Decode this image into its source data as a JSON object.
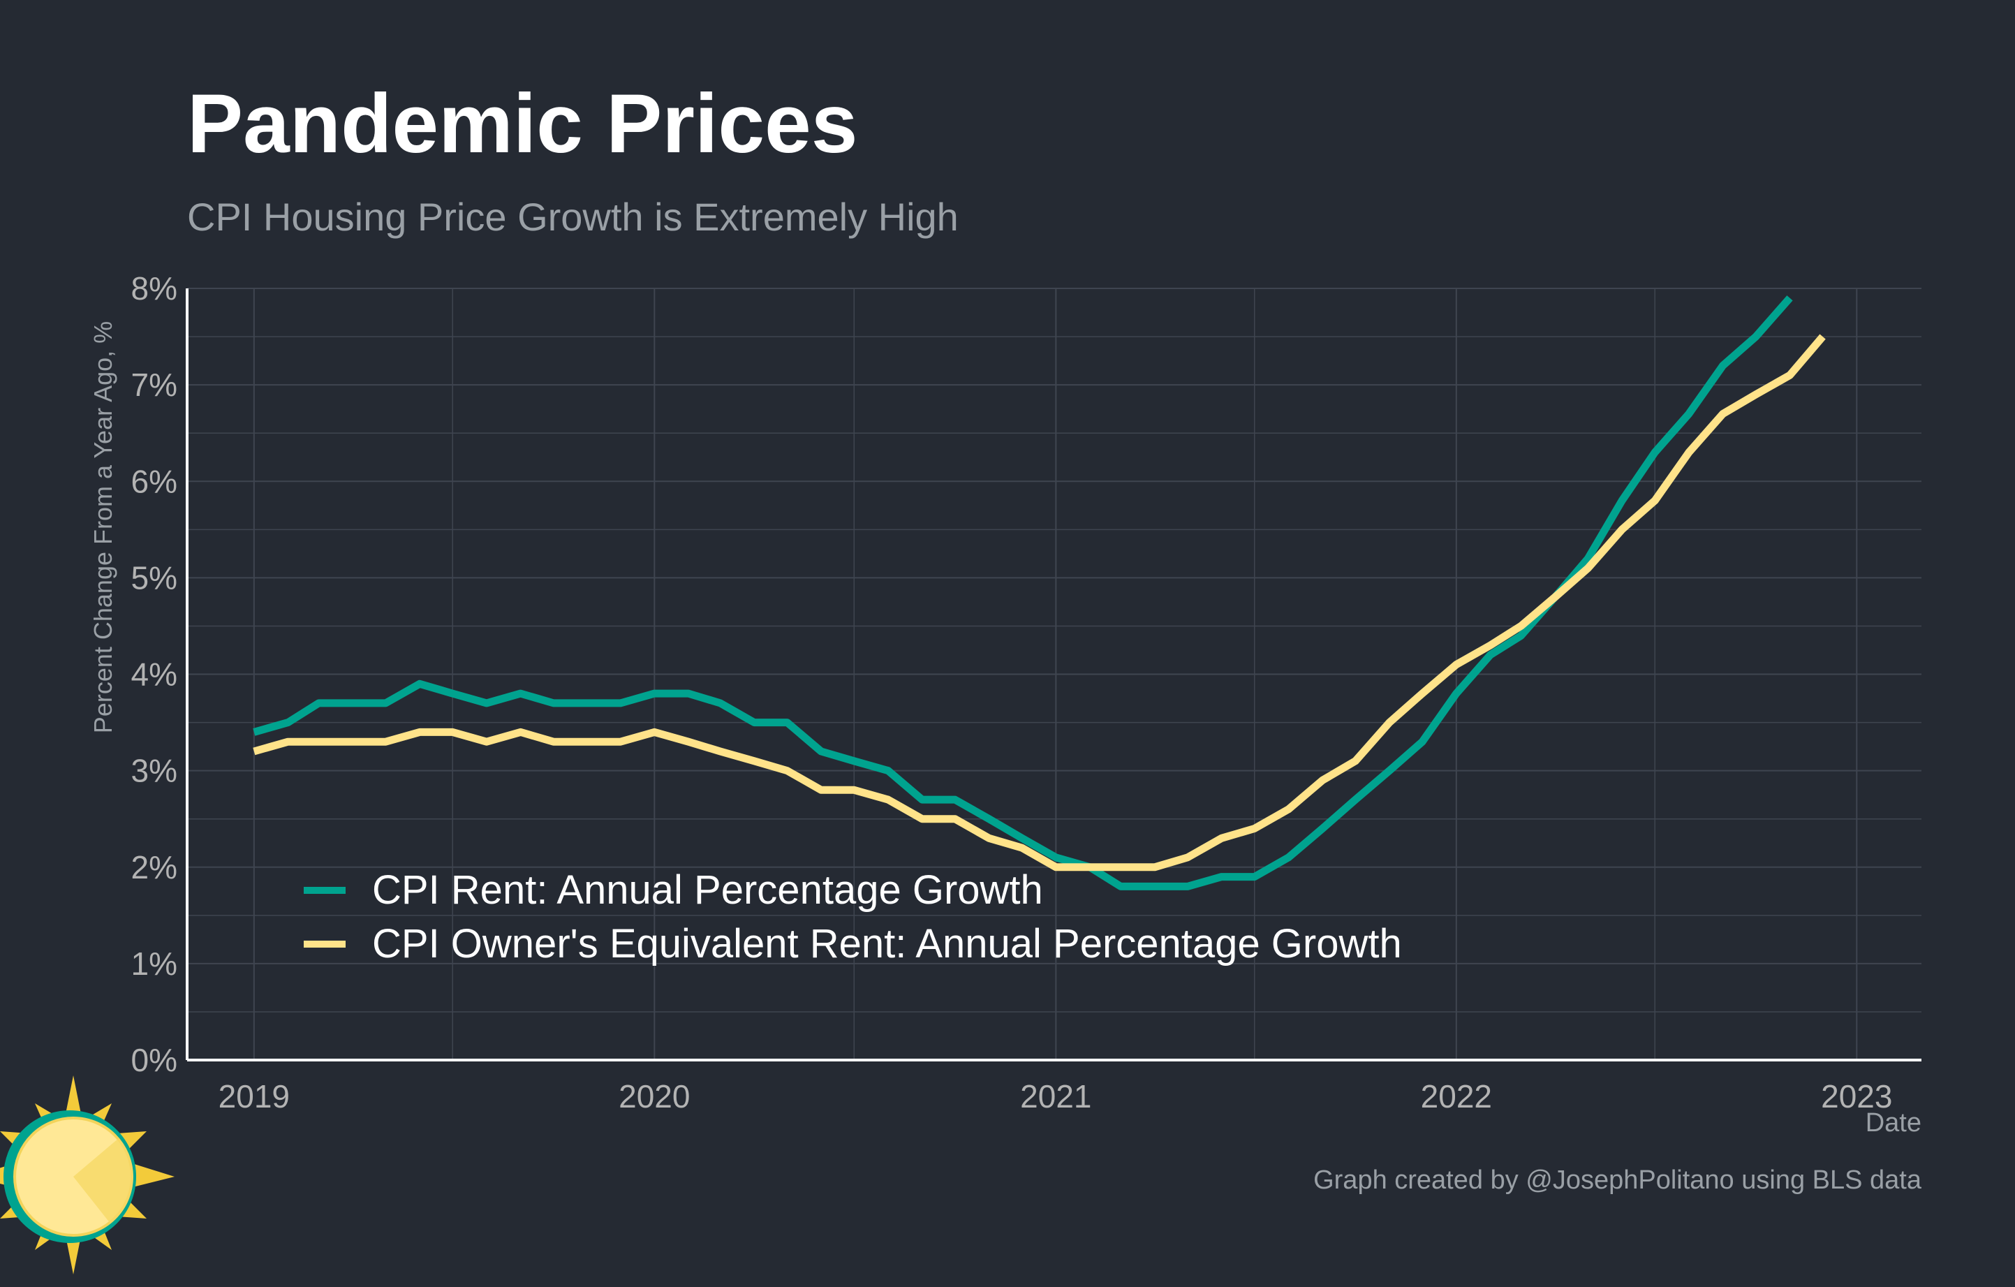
{
  "title": "Pandemic Prices",
  "subtitle": "CPI Housing Price Growth is Extremely High",
  "caption": "Graph created by @JosephPolitano using BLS data",
  "colors": {
    "background": "#252a33",
    "grid": "#3f4550",
    "axis": "#ffffff",
    "text_muted": "#9aa0a6",
    "tick": "#b3b3b3"
  },
  "logo": {
    "icon": "sun-logo-icon"
  },
  "chart_data": {
    "type": "line",
    "xlabel": "Date",
    "ylabel": "Percent Change From a Year Ago, %",
    "xlim": [
      "2018-11-01",
      "2023-03-01"
    ],
    "ylim": [
      0,
      8
    ],
    "x_ticks": [
      "2019",
      "2020",
      "2021",
      "2022",
      "2023"
    ],
    "y_ticks": [
      "0%",
      "1%",
      "2%",
      "3%",
      "4%",
      "5%",
      "6%",
      "7%",
      "8%"
    ],
    "grid": true,
    "legend_position": "bottom-left",
    "series": [
      {
        "name": "CPI Rent: Annual Percentage Growth",
        "color": "#00a38f",
        "x": [
          "2019-01",
          "2019-02",
          "2019-03",
          "2019-04",
          "2019-05",
          "2019-06",
          "2019-07",
          "2019-08",
          "2019-09",
          "2019-10",
          "2019-11",
          "2019-12",
          "2020-01",
          "2020-02",
          "2020-03",
          "2020-04",
          "2020-05",
          "2020-06",
          "2020-07",
          "2020-08",
          "2020-09",
          "2020-10",
          "2020-11",
          "2020-12",
          "2021-01",
          "2021-02",
          "2021-03",
          "2021-04",
          "2021-05",
          "2021-06",
          "2021-07",
          "2021-08",
          "2021-09",
          "2021-10",
          "2021-11",
          "2021-12",
          "2022-01",
          "2022-02",
          "2022-03",
          "2022-04",
          "2022-05",
          "2022-06",
          "2022-07",
          "2022-08",
          "2022-09",
          "2022-10",
          "2022-11"
        ],
        "values": [
          3.4,
          3.5,
          3.7,
          3.7,
          3.7,
          3.9,
          3.8,
          3.7,
          3.8,
          3.7,
          3.7,
          3.7,
          3.8,
          3.8,
          3.7,
          3.5,
          3.5,
          3.2,
          3.1,
          3.0,
          2.7,
          2.7,
          2.5,
          2.3,
          2.1,
          2.0,
          1.8,
          1.8,
          1.8,
          1.9,
          1.9,
          2.1,
          2.4,
          2.7,
          3.0,
          3.3,
          3.8,
          4.2,
          4.4,
          4.8,
          5.2,
          5.8,
          6.3,
          6.7,
          7.2,
          7.5,
          7.9
        ]
      },
      {
        "name": "CPI Owner's Equivalent Rent: Annual Percentage Growth",
        "color": "#ffe38a",
        "x": [
          "2019-01",
          "2019-02",
          "2019-03",
          "2019-04",
          "2019-05",
          "2019-06",
          "2019-07",
          "2019-08",
          "2019-09",
          "2019-10",
          "2019-11",
          "2019-12",
          "2020-01",
          "2020-02",
          "2020-03",
          "2020-04",
          "2020-05",
          "2020-06",
          "2020-07",
          "2020-08",
          "2020-09",
          "2020-10",
          "2020-11",
          "2020-12",
          "2021-01",
          "2021-02",
          "2021-03",
          "2021-04",
          "2021-05",
          "2021-06",
          "2021-07",
          "2021-08",
          "2021-09",
          "2021-10",
          "2021-11",
          "2021-12",
          "2022-01",
          "2022-02",
          "2022-03",
          "2022-04",
          "2022-05",
          "2022-06",
          "2022-07",
          "2022-08",
          "2022-09",
          "2022-10",
          "2022-11",
          "2022-12"
        ],
        "values": [
          3.2,
          3.3,
          3.3,
          3.3,
          3.3,
          3.4,
          3.4,
          3.3,
          3.4,
          3.3,
          3.3,
          3.3,
          3.4,
          3.3,
          3.2,
          3.1,
          3.0,
          2.8,
          2.8,
          2.7,
          2.5,
          2.5,
          2.3,
          2.2,
          2.0,
          2.0,
          2.0,
          2.0,
          2.1,
          2.3,
          2.4,
          2.6,
          2.9,
          3.1,
          3.5,
          3.8,
          4.1,
          4.3,
          4.5,
          4.8,
          5.1,
          5.5,
          5.8,
          6.3,
          6.7,
          6.9,
          7.1,
          7.5
        ]
      }
    ]
  }
}
